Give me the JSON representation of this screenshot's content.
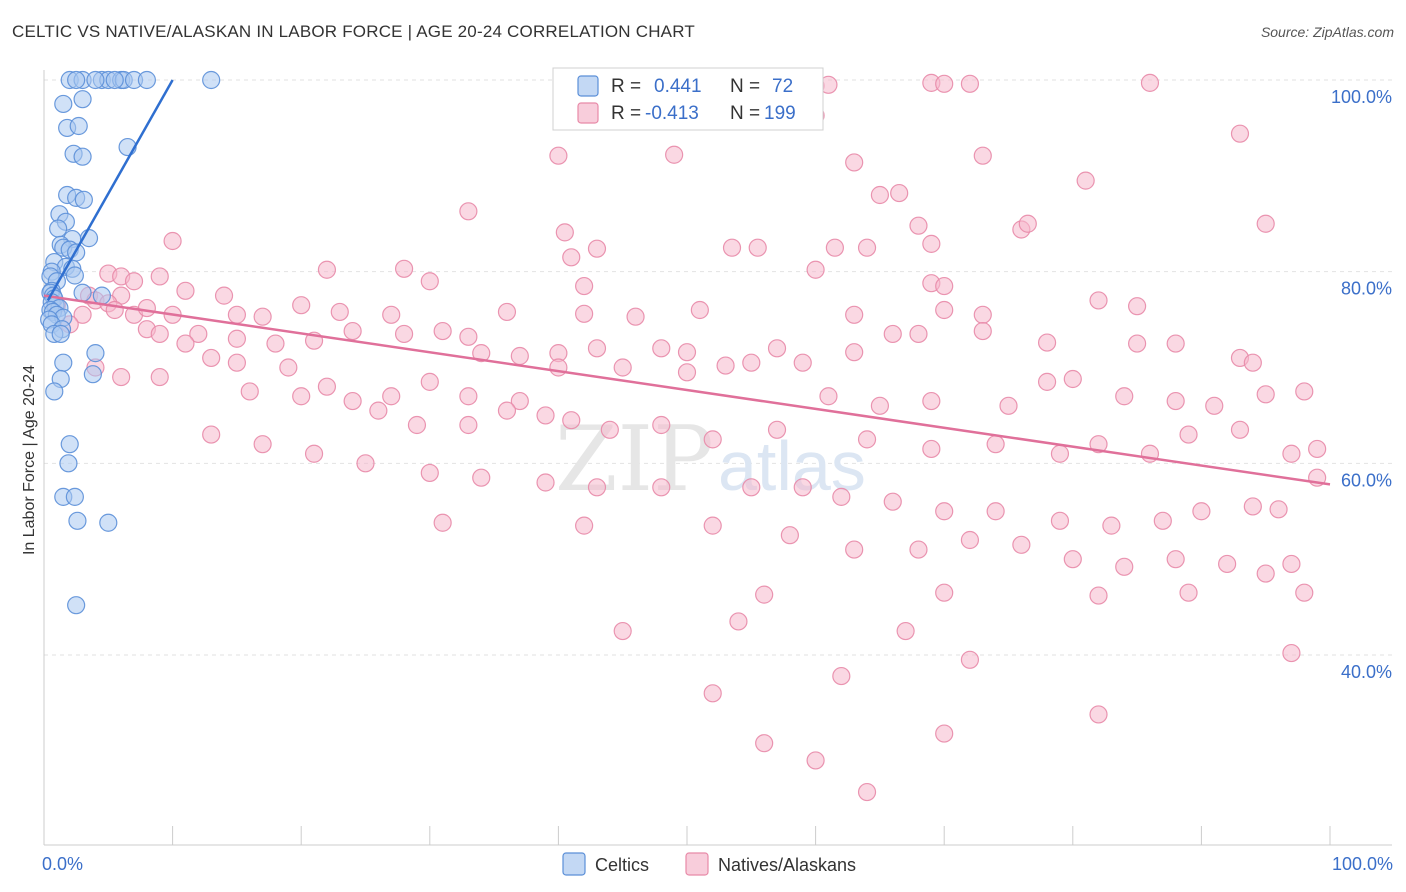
{
  "title": "CELTIC VS NATIVE/ALASKAN IN LABOR FORCE | AGE 20-24 CORRELATION CHART",
  "source": "Source: ZipAtlas.com",
  "colors": {
    "celtic_fill": "#aac8f0",
    "celtic_stroke": "#5b8fd8",
    "celtic_line": "#2f6fd0",
    "native_fill": "#f5b8cc",
    "native_stroke": "#e88aa8",
    "native_line": "#e0709a",
    "tick": "#3b6fc9",
    "grid": "#e2e2e2"
  },
  "watermark": {
    "zip": "ZIP",
    "atlas": "atlas"
  },
  "legend": {
    "r_label": "R =",
    "n_label": "N =",
    "rows": [
      {
        "series": "Celtics",
        "r": "0.441",
        "n": "72"
      },
      {
        "series": "Natives/Alaskans",
        "r": "-0.413",
        "n": "199"
      }
    ]
  },
  "chart_data": {
    "type": "scatter",
    "xlabel": "",
    "ylabel": "In Labor Force | Age 20-24",
    "xlim": [
      0,
      100
    ],
    "ylim": [
      20,
      100
    ],
    "x_tick_labels": [
      "0.0%",
      "100.0%"
    ],
    "y_ticks": [
      40,
      60,
      80,
      100
    ],
    "y_tick_labels": [
      "40.0%",
      "60.0%",
      "80.0%",
      "100.0%"
    ],
    "grid": true,
    "legend_position": "top-center",
    "series": [
      {
        "name": "Celtics",
        "r": 0.441,
        "n": 72,
        "trend": {
          "x": [
            0.3,
            10
          ],
          "y": [
            77,
            100
          ]
        },
        "points": [
          [
            2,
            100
          ],
          [
            3,
            100
          ],
          [
            2.5,
            100
          ],
          [
            4.5,
            100
          ],
          [
            5,
            100
          ],
          [
            6,
            100
          ],
          [
            6.2,
            100
          ],
          [
            7,
            100
          ],
          [
            8,
            100
          ],
          [
            13,
            100
          ],
          [
            4,
            100
          ],
          [
            5.5,
            100
          ],
          [
            1.5,
            97.5
          ],
          [
            3,
            98
          ],
          [
            1.8,
            95
          ],
          [
            2.7,
            95.2
          ],
          [
            6.5,
            93
          ],
          [
            2.3,
            92.3
          ],
          [
            3,
            92
          ],
          [
            1.8,
            88
          ],
          [
            2.5,
            87.7
          ],
          [
            3.1,
            87.5
          ],
          [
            1.2,
            86
          ],
          [
            1.7,
            85.2
          ],
          [
            1.1,
            84.5
          ],
          [
            2.2,
            83.4
          ],
          [
            3.5,
            83.5
          ],
          [
            1.3,
            82.8
          ],
          [
            1.5,
            82.5
          ],
          [
            2,
            82.3
          ],
          [
            2.5,
            82
          ],
          [
            0.8,
            81
          ],
          [
            1.7,
            80.5
          ],
          [
            2.2,
            80.3
          ],
          [
            0.6,
            80
          ],
          [
            0.5,
            79.5
          ],
          [
            2.4,
            79.6
          ],
          [
            1,
            79
          ],
          [
            0.6,
            78
          ],
          [
            0.5,
            77.8
          ],
          [
            0.7,
            77.5
          ],
          [
            0.8,
            77.2
          ],
          [
            0.6,
            76.8
          ],
          [
            0.9,
            76.5
          ],
          [
            1.2,
            76.2
          ],
          [
            0.5,
            76
          ],
          [
            0.7,
            75.8
          ],
          [
            1,
            75.5
          ],
          [
            1.5,
            75.2
          ],
          [
            0.4,
            75
          ],
          [
            0.6,
            74.5
          ],
          [
            1.4,
            74
          ],
          [
            0.8,
            73.5
          ],
          [
            1.3,
            73.5
          ],
          [
            3,
            77.8
          ],
          [
            4.5,
            77.5
          ],
          [
            4,
            71.5
          ],
          [
            1.5,
            70.5
          ],
          [
            3.8,
            69.3
          ],
          [
            1.3,
            68.8
          ],
          [
            0.8,
            67.5
          ],
          [
            2,
            62
          ],
          [
            1.9,
            60
          ],
          [
            1.5,
            56.5
          ],
          [
            2.4,
            56.5
          ],
          [
            2.6,
            54
          ],
          [
            5,
            53.8
          ],
          [
            2.5,
            45.2
          ]
        ]
      },
      {
        "name": "Natives/Alaskans",
        "r": -0.413,
        "n": 199,
        "trend": {
          "x": [
            0,
            100
          ],
          "y": [
            77.5,
            57.8
          ]
        },
        "points": [
          [
            59,
            99.5
          ],
          [
            60,
            99.4
          ],
          [
            61,
            99.5
          ],
          [
            69,
            99.7
          ],
          [
            70,
            99.6
          ],
          [
            72,
            99.6
          ],
          [
            86,
            99.7
          ],
          [
            60,
            96.3
          ],
          [
            93,
            94.4
          ],
          [
            40,
            92.1
          ],
          [
            49,
            92.2
          ],
          [
            63,
            91.4
          ],
          [
            73,
            92.1
          ],
          [
            81,
            89.5
          ],
          [
            65,
            88
          ],
          [
            66.5,
            88.2
          ],
          [
            33,
            86.3
          ],
          [
            68,
            84.8
          ],
          [
            76,
            84.4
          ],
          [
            76.5,
            85
          ],
          [
            95,
            85
          ],
          [
            40.5,
            84.1
          ],
          [
            53.5,
            82.5
          ],
          [
            55.5,
            82.5
          ],
          [
            61.5,
            82.5
          ],
          [
            64,
            82.5
          ],
          [
            69,
            82.9
          ],
          [
            43,
            82.4
          ],
          [
            41,
            81.5
          ],
          [
            10,
            83.2
          ],
          [
            22,
            80.2
          ],
          [
            28,
            80.3
          ],
          [
            60,
            80.2
          ],
          [
            5,
            79.8
          ],
          [
            6,
            79.5
          ],
          [
            7,
            79
          ],
          [
            9,
            79.5
          ],
          [
            30,
            79
          ],
          [
            42,
            78.5
          ],
          [
            69,
            78.8
          ],
          [
            70,
            78.5
          ],
          [
            11,
            78
          ],
          [
            14,
            77.5
          ],
          [
            6,
            77.5
          ],
          [
            1,
            76.5
          ],
          [
            3.5,
            77.5
          ],
          [
            4,
            77
          ],
          [
            5,
            76.7
          ],
          [
            5.5,
            76
          ],
          [
            7,
            75.5
          ],
          [
            8,
            76.2
          ],
          [
            10,
            75.5
          ],
          [
            15,
            75.5
          ],
          [
            17,
            75.3
          ],
          [
            20,
            76.5
          ],
          [
            23,
            75.8
          ],
          [
            27,
            75.5
          ],
          [
            36,
            75.8
          ],
          [
            42,
            75.6
          ],
          [
            46,
            75.3
          ],
          [
            51,
            76
          ],
          [
            63,
            75.5
          ],
          [
            70,
            76
          ],
          [
            73,
            75.5
          ],
          [
            82,
            77
          ],
          [
            85,
            76.4
          ],
          [
            3,
            75.5
          ],
          [
            2,
            74.5
          ],
          [
            8,
            74
          ],
          [
            9,
            73.5
          ],
          [
            12,
            73.5
          ],
          [
            15,
            73
          ],
          [
            18,
            72.5
          ],
          [
            21,
            72.8
          ],
          [
            24,
            73.8
          ],
          [
            28,
            73.5
          ],
          [
            31,
            73.8
          ],
          [
            33,
            73.2
          ],
          [
            34,
            71.5
          ],
          [
            37,
            71.2
          ],
          [
            40,
            71.5
          ],
          [
            43,
            72
          ],
          [
            48,
            72
          ],
          [
            50,
            71.6
          ],
          [
            57,
            72
          ],
          [
            63,
            71.6
          ],
          [
            66,
            73.5
          ],
          [
            68,
            73.5
          ],
          [
            73,
            73.8
          ],
          [
            78,
            72.6
          ],
          [
            85,
            72.5
          ],
          [
            88,
            72.5
          ],
          [
            93,
            71
          ],
          [
            94,
            70.5
          ],
          [
            11,
            72.5
          ],
          [
            13,
            71
          ],
          [
            15,
            70.5
          ],
          [
            19,
            70
          ],
          [
            22,
            68
          ],
          [
            27,
            67
          ],
          [
            30,
            68.5
          ],
          [
            33,
            67
          ],
          [
            37,
            66.5
          ],
          [
            40,
            70
          ],
          [
            45,
            70
          ],
          [
            50,
            69.5
          ],
          [
            53,
            70.2
          ],
          [
            55,
            70.5
          ],
          [
            59,
            70.5
          ],
          [
            61,
            67
          ],
          [
            65,
            66
          ],
          [
            69,
            66.5
          ],
          [
            75,
            66
          ],
          [
            78,
            68.5
          ],
          [
            80,
            68.8
          ],
          [
            84,
            67
          ],
          [
            88,
            66.5
          ],
          [
            91,
            66
          ],
          [
            95,
            67.2
          ],
          [
            98,
            67.5
          ],
          [
            4,
            70
          ],
          [
            6,
            69
          ],
          [
            9,
            69
          ],
          [
            16,
            67.5
          ],
          [
            20,
            67
          ],
          [
            24,
            66.5
          ],
          [
            26,
            65.5
          ],
          [
            29,
            64
          ],
          [
            33,
            64
          ],
          [
            36,
            65.5
          ],
          [
            39,
            65
          ],
          [
            41,
            64.5
          ],
          [
            44,
            63.5
          ],
          [
            48,
            64
          ],
          [
            52,
            62.5
          ],
          [
            57,
            63.5
          ],
          [
            64,
            62.5
          ],
          [
            69,
            61.5
          ],
          [
            74,
            62
          ],
          [
            79,
            61
          ],
          [
            82,
            62
          ],
          [
            86,
            61
          ],
          [
            89,
            63
          ],
          [
            93,
            63.5
          ],
          [
            97,
            61
          ],
          [
            99,
            61.5
          ],
          [
            13,
            63
          ],
          [
            17,
            62
          ],
          [
            21,
            61
          ],
          [
            25,
            60
          ],
          [
            30,
            59
          ],
          [
            34,
            58.5
          ],
          [
            39,
            58
          ],
          [
            43,
            57.5
          ],
          [
            48,
            57.5
          ],
          [
            55,
            57.5
          ],
          [
            59,
            57.5
          ],
          [
            62,
            56.5
          ],
          [
            66,
            56
          ],
          [
            70,
            55
          ],
          [
            74,
            55
          ],
          [
            79,
            54
          ],
          [
            83,
            53.5
          ],
          [
            87,
            54
          ],
          [
            90,
            55
          ],
          [
            94,
            55.5
          ],
          [
            96,
            55.2
          ],
          [
            99,
            58.5
          ],
          [
            31,
            53.8
          ],
          [
            42,
            53.5
          ],
          [
            52,
            53.5
          ],
          [
            58,
            52.5
          ],
          [
            63,
            51
          ],
          [
            68,
            51
          ],
          [
            72,
            52
          ],
          [
            76,
            51.5
          ],
          [
            80,
            50
          ],
          [
            84,
            49.2
          ],
          [
            88,
            50
          ],
          [
            92,
            49.5
          ],
          [
            95,
            48.5
          ],
          [
            97,
            49.5
          ],
          [
            98,
            46.5
          ],
          [
            56,
            46.3
          ],
          [
            70,
            46.5
          ],
          [
            82,
            46.2
          ],
          [
            89,
            46.5
          ],
          [
            45,
            42.5
          ],
          [
            54,
            43.5
          ],
          [
            67,
            42.5
          ],
          [
            72,
            39.5
          ],
          [
            97,
            40.2
          ],
          [
            52,
            36
          ],
          [
            62,
            37.8
          ],
          [
            82,
            33.8
          ],
          [
            56,
            30.8
          ],
          [
            70,
            31.8
          ],
          [
            60,
            29
          ],
          [
            64,
            25.7
          ]
        ]
      }
    ]
  },
  "bottom_legend": [
    {
      "label": "Celtics"
    },
    {
      "label": "Natives/Alaskans"
    }
  ]
}
